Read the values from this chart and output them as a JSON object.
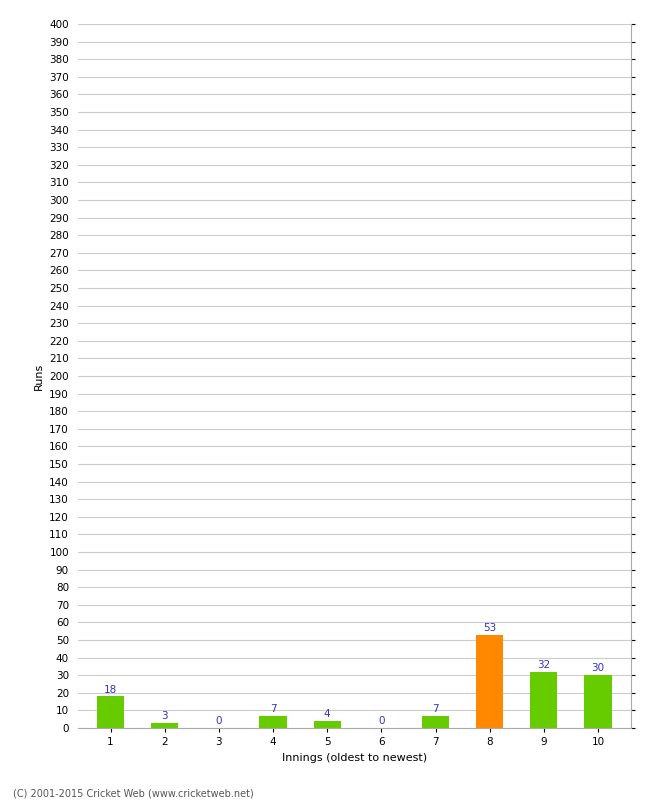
{
  "categories": [
    "1",
    "2",
    "3",
    "4",
    "5",
    "6",
    "7",
    "8",
    "9",
    "10"
  ],
  "values": [
    18,
    3,
    0,
    7,
    4,
    0,
    7,
    53,
    32,
    30
  ],
  "bar_colors": [
    "#66cc00",
    "#66cc00",
    "#66cc00",
    "#66cc00",
    "#66cc00",
    "#66cc00",
    "#66cc00",
    "#ff8800",
    "#66cc00",
    "#66cc00"
  ],
  "xlabel": "Innings (oldest to newest)",
  "ylabel": "Runs",
  "ylim": [
    0,
    400
  ],
  "ytick_step": 10,
  "label_color": "#3333cc",
  "label_fontsize": 7.5,
  "axis_label_fontsize": 8,
  "tick_fontsize": 7.5,
  "background_color": "#ffffff",
  "grid_color": "#cccccc",
  "footer_text": "(C) 2001-2015 Cricket Web (www.cricketweb.net)",
  "bar_width": 0.5
}
